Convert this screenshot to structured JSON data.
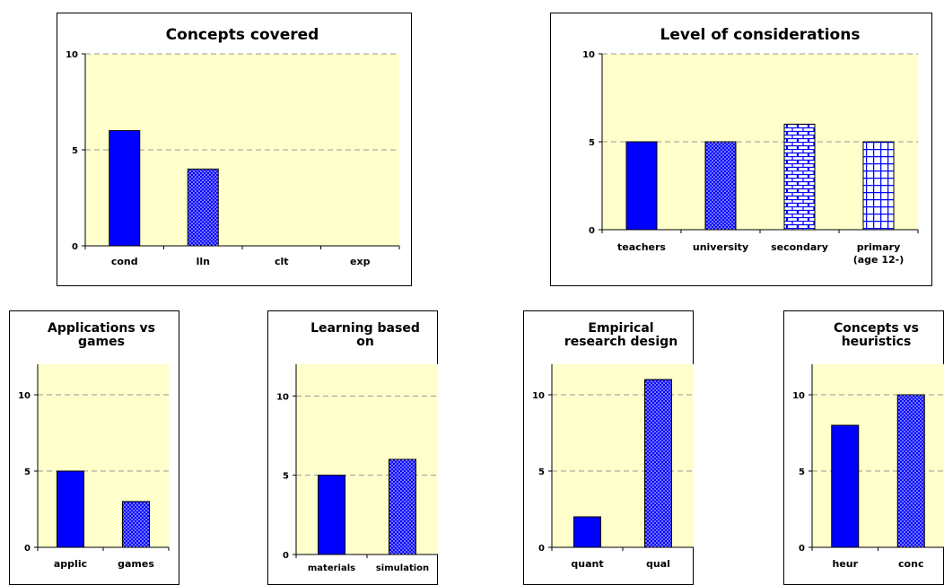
{
  "colors": {
    "plot_bg": "#ffffcc",
    "bar_blue": "#0000ff",
    "grid": "#999999",
    "frame": "#000000"
  },
  "chart_data": [
    {
      "type": "bar",
      "title": "Concepts covered",
      "categories": [
        "cond",
        "lln",
        "clt",
        "exp"
      ],
      "values": [
        6,
        4,
        0,
        0
      ],
      "patterns": [
        "solid",
        "dots",
        "brick",
        "grid"
      ],
      "ylim": [
        0,
        10
      ],
      "yticks": [
        0,
        5,
        10
      ],
      "grid": true
    },
    {
      "type": "bar",
      "title": "Level of considerations",
      "categories": [
        "teachers",
        "university",
        "secondary",
        "primary\n(age 12-)"
      ],
      "values": [
        5,
        5,
        6,
        5
      ],
      "patterns": [
        "solid",
        "dots",
        "brick",
        "grid"
      ],
      "ylim": [
        0,
        10
      ],
      "yticks": [
        0,
        5,
        10
      ],
      "grid": true
    },
    {
      "type": "bar",
      "title": "Applications vs\ngames",
      "categories": [
        "applic",
        "games"
      ],
      "values": [
        5,
        3
      ],
      "patterns": [
        "solid",
        "dots"
      ],
      "ylim": [
        0,
        12
      ],
      "yticks": [
        0,
        5,
        10
      ],
      "grid": true
    },
    {
      "type": "bar",
      "title": "Learning based\non",
      "categories": [
        "materials",
        "simulation"
      ],
      "values": [
        5,
        6
      ],
      "patterns": [
        "solid",
        "dots"
      ],
      "ylim": [
        0,
        12
      ],
      "yticks": [
        0,
        5,
        10
      ],
      "grid": true
    },
    {
      "type": "bar",
      "title": "Empirical\nresearch design",
      "categories": [
        "quant",
        "qual"
      ],
      "values": [
        2,
        11
      ],
      "patterns": [
        "solid",
        "dots"
      ],
      "ylim": [
        0,
        12
      ],
      "yticks": [
        0,
        5,
        10
      ],
      "grid": true
    },
    {
      "type": "bar",
      "title": "Concepts vs\nheuristics",
      "categories": [
        "heur",
        "conc"
      ],
      "values": [
        8,
        10
      ],
      "patterns": [
        "solid",
        "dots"
      ],
      "ylim": [
        0,
        12
      ],
      "yticks": [
        0,
        5,
        10
      ],
      "grid": true
    }
  ]
}
